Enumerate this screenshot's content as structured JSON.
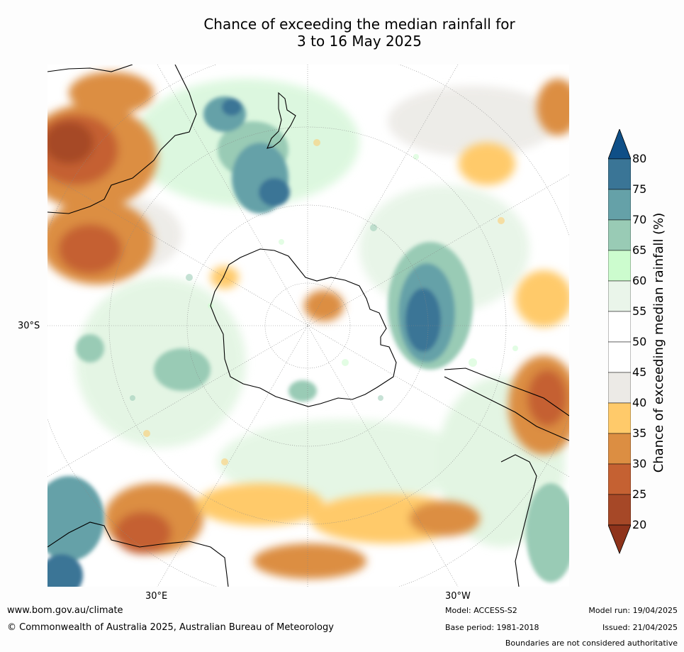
{
  "title": {
    "line1": "Chance of exceeding the median rainfall for",
    "line2": "3 to 16 May 2025"
  },
  "map": {
    "axis_labels": {
      "lat_30s": "30°S",
      "lon_30e": "30°E",
      "lon_30w": "30°W"
    }
  },
  "colorbar": {
    "title": "Chance of exceeding median rainfall (%)",
    "ticks": [
      "80",
      "75",
      "70",
      "65",
      "60",
      "55",
      "50",
      "45",
      "40",
      "35",
      "30",
      "25",
      "20"
    ],
    "colors": [
      "#0f4f87",
      "#3a7596",
      "#65a1a8",
      "#99cbb5",
      "#ccfcce",
      "#eaf5ea",
      "#ffffff",
      "#ffffff",
      "#eceae6",
      "#ffca6a",
      "#dc8e42",
      "#c56132",
      "#a64827",
      "#8e331b"
    ]
  },
  "footer": {
    "website": "www.bom.gov.au/climate",
    "copyright": "© Commonwealth of Australia 2025, Australian Bureau of Meteorology",
    "model": "Model: ACCESS-S2",
    "base_period": "Base period: 1981-2018",
    "model_run": "Model run: 19/04/2025",
    "issued": "Issued: 21/04/2025",
    "disclaimer": "Boundaries are not considered authoritative"
  }
}
